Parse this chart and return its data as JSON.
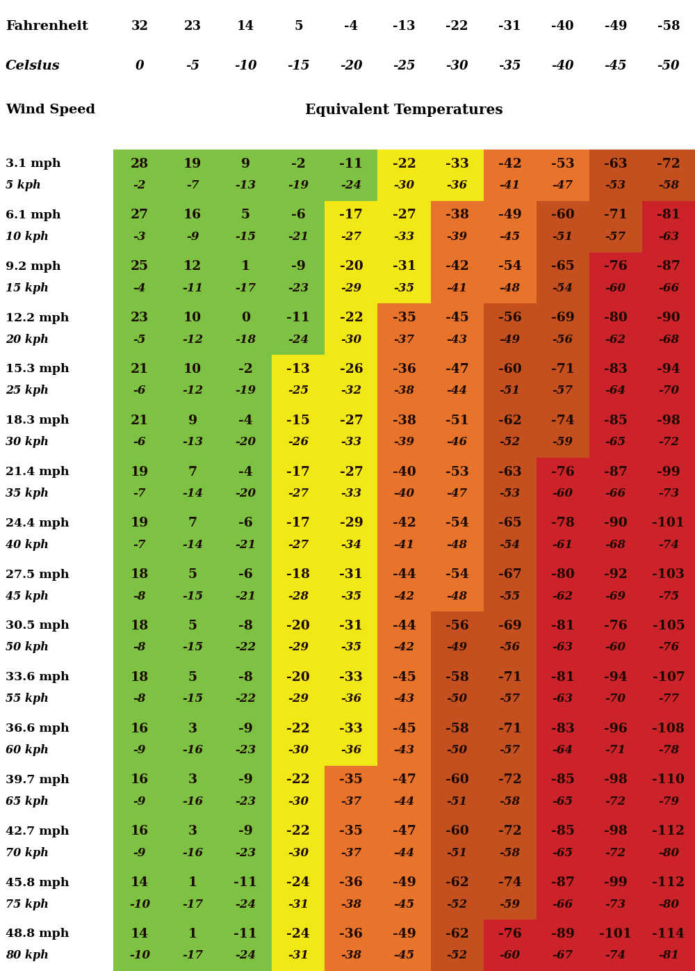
{
  "fahrenheit": [
    32,
    23,
    14,
    5,
    -4,
    -13,
    -22,
    -31,
    -40,
    -49,
    -58
  ],
  "celsius": [
    0,
    -5,
    -10,
    -15,
    -20,
    -25,
    -30,
    -35,
    -40,
    -45,
    -50
  ],
  "wind_rows": [
    {
      "mph": "3.1 mph",
      "kph": "5 kph",
      "f": [
        28,
        19,
        9,
        -2,
        -11,
        -22,
        -33,
        -42,
        -53,
        -63,
        -72
      ],
      "c": [
        -2,
        -7,
        -13,
        -19,
        -24,
        -30,
        -36,
        -41,
        -47,
        -53,
        -58
      ]
    },
    {
      "mph": "6.1 mph",
      "kph": "10 kph",
      "f": [
        27,
        16,
        5,
        -6,
        -17,
        -27,
        -38,
        -49,
        -60,
        -71,
        -81
      ],
      "c": [
        -3,
        -9,
        -15,
        -21,
        -27,
        -33,
        -39,
        -45,
        -51,
        -57,
        -63
      ]
    },
    {
      "mph": "9.2 mph",
      "kph": "15 kph",
      "f": [
        25,
        12,
        1,
        -9,
        -20,
        -31,
        -42,
        -54,
        -65,
        -76,
        -87
      ],
      "c": [
        -4,
        -11,
        -17,
        -23,
        -29,
        -35,
        -41,
        -48,
        -54,
        -60,
        -66
      ]
    },
    {
      "mph": "12.2 mph",
      "kph": "20 kph",
      "f": [
        23,
        10,
        0,
        -11,
        -22,
        -35,
        -45,
        -56,
        -69,
        -80,
        -90
      ],
      "c": [
        -5,
        -12,
        -18,
        -24,
        -30,
        -37,
        -43,
        -49,
        -56,
        -62,
        -68
      ]
    },
    {
      "mph": "15.3 mph",
      "kph": "25 kph",
      "f": [
        21,
        10,
        -2,
        -13,
        -26,
        -36,
        -47,
        -60,
        -71,
        -83,
        -94
      ],
      "c": [
        -6,
        -12,
        -19,
        -25,
        -32,
        -38,
        -44,
        -51,
        -57,
        -64,
        -70
      ]
    },
    {
      "mph": "18.3 mph",
      "kph": "30 kph",
      "f": [
        21,
        9,
        -4,
        -15,
        -27,
        -38,
        -51,
        -62,
        -74,
        -85,
        -98
      ],
      "c": [
        -6,
        -13,
        -20,
        -26,
        -33,
        -39,
        -46,
        -52,
        -59,
        -65,
        -72
      ]
    },
    {
      "mph": "21.4 mph",
      "kph": "35 kph",
      "f": [
        19,
        7,
        -4,
        -17,
        -27,
        -40,
        -53,
        -63,
        -76,
        -87,
        -99
      ],
      "c": [
        -7,
        -14,
        -20,
        -27,
        -33,
        -40,
        -47,
        -53,
        -60,
        -66,
        -73
      ]
    },
    {
      "mph": "24.4 mph",
      "kph": "40 kph",
      "f": [
        19,
        7,
        -6,
        -17,
        -29,
        -42,
        -54,
        -65,
        -78,
        -90,
        -101
      ],
      "c": [
        -7,
        -14,
        -21,
        -27,
        -34,
        -41,
        -48,
        -54,
        -61,
        -68,
        -74
      ]
    },
    {
      "mph": "27.5 mph",
      "kph": "45 kph",
      "f": [
        18,
        5,
        -6,
        -18,
        -31,
        -44,
        -54,
        -67,
        -80,
        -92,
        -103
      ],
      "c": [
        -8,
        -15,
        -21,
        -28,
        -35,
        -42,
        -48,
        -55,
        -62,
        -69,
        -75
      ]
    },
    {
      "mph": "30.5 mph",
      "kph": "50 kph",
      "f": [
        18,
        5,
        -8,
        -20,
        -31,
        -44,
        -56,
        -69,
        -81,
        -76,
        -105
      ],
      "c": [
        -8,
        -15,
        -22,
        -29,
        -35,
        -42,
        -49,
        -56,
        -63,
        -60,
        -76
      ]
    },
    {
      "mph": "33.6 mph",
      "kph": "55 kph",
      "f": [
        18,
        5,
        -8,
        -20,
        -33,
        -45,
        -58,
        -71,
        -81,
        -94,
        -107
      ],
      "c": [
        -8,
        -15,
        -22,
        -29,
        -36,
        -43,
        -50,
        -57,
        -63,
        -70,
        -77
      ]
    },
    {
      "mph": "36.6 mph",
      "kph": "60 kph",
      "f": [
        16,
        3,
        -9,
        -22,
        -33,
        -45,
        -58,
        -71,
        -83,
        -96,
        -108
      ],
      "c": [
        -9,
        -16,
        -23,
        -30,
        -36,
        -43,
        -50,
        -57,
        -64,
        -71,
        -78
      ]
    },
    {
      "mph": "39.7 mph",
      "kph": "65 kph",
      "f": [
        16,
        3,
        -9,
        -22,
        -35,
        -47,
        -60,
        -72,
        -85,
        -98,
        -110
      ],
      "c": [
        -9,
        -16,
        -23,
        -30,
        -37,
        -44,
        -51,
        -58,
        -65,
        -72,
        -79
      ]
    },
    {
      "mph": "42.7 mph",
      "kph": "70 kph",
      "f": [
        16,
        3,
        -9,
        -22,
        -35,
        -47,
        -60,
        -72,
        -85,
        -98,
        -112
      ],
      "c": [
        -9,
        -16,
        -23,
        -30,
        -37,
        -44,
        -51,
        -58,
        -65,
        -72,
        -80
      ]
    },
    {
      "mph": "45.8 mph",
      "kph": "75 kph",
      "f": [
        14,
        1,
        -11,
        -24,
        -36,
        -49,
        -62,
        -74,
        -87,
        -99,
        -112
      ],
      "c": [
        -10,
        -17,
        -24,
        -31,
        -38,
        -45,
        -52,
        -59,
        -66,
        -73,
        -80
      ]
    },
    {
      "mph": "48.8 mph",
      "kph": "80 kph",
      "f": [
        14,
        1,
        -11,
        -24,
        -36,
        -49,
        -62,
        -76,
        -89,
        -101,
        -114
      ],
      "c": [
        -10,
        -17,
        -24,
        -31,
        -38,
        -45,
        -52,
        -60,
        -67,
        -74,
        -81
      ]
    }
  ],
  "col_colors": [
    "#7dc242",
    "#7dc242",
    "#7dc242",
    "#7dc242",
    "#7dc242",
    "#f2e816",
    "#f2e816",
    "#e8732a",
    "#c45020",
    "#cc2229",
    "#cc2229"
  ],
  "green": "#7dc242",
  "yellow": "#f2e816",
  "orange": "#e8732a",
  "dark_orange": "#c45020",
  "red": "#cc2229",
  "white": "#ffffff",
  "text_dark": "#1a0800",
  "text_black": "#000000"
}
